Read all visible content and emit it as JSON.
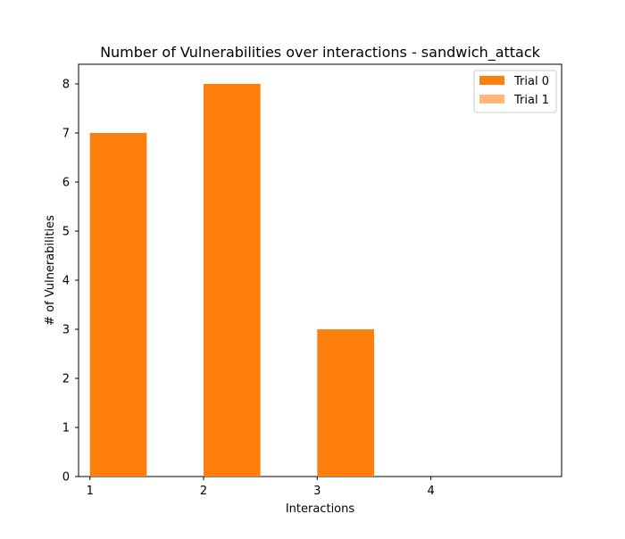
{
  "chart_data": {
    "type": "bar",
    "title": "Number of Vulnerabilities over interactions - sandwich_attack",
    "xlabel": "Interactions",
    "ylabel": "# of Vulnerabilities",
    "xlim": [
      0.9,
      5.15
    ],
    "ylim": [
      0,
      8.4
    ],
    "x_ticks": [
      1,
      2,
      3,
      4
    ],
    "y_ticks": [
      0,
      1,
      2,
      3,
      4,
      5,
      6,
      7,
      8
    ],
    "bar_width": 0.5,
    "bar_offset": 0.25,
    "grid": false,
    "legend_position": "top-right",
    "series": [
      {
        "name": "Trial 0",
        "color": "#ff7f0e",
        "x": [
          1,
          2,
          3
        ],
        "values": [
          7,
          8,
          3
        ]
      },
      {
        "name": "Trial 1",
        "color": "#ffb87a",
        "x": [],
        "values": []
      }
    ]
  }
}
